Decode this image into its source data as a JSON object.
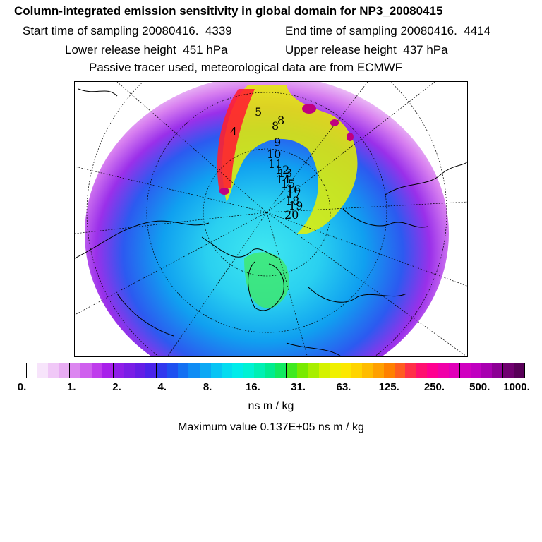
{
  "header": {
    "title": "Column-integrated emission sensitivity in global domain for NP3_20080415",
    "start_time": "Start time of sampling 20080416.  4339",
    "end_time": "End time of sampling 20080416.  4414",
    "lower_height": "Lower release height  451 hPa",
    "upper_height": "Upper release height  437 hPa",
    "tracer_note": "Passive tracer used, meteorological data are from ECMWF"
  },
  "map": {
    "projection": "polar-stereographic-north",
    "trajectory_labels": [
      "4",
      "5",
      "8",
      "8",
      "9",
      "10",
      "11",
      "12",
      "13",
      "14",
      "15",
      "16",
      "17",
      "18",
      "19",
      "20"
    ]
  },
  "colorbar": {
    "colors": [
      "#ffffff",
      "#f7e4fb",
      "#f0c8f7",
      "#e8acf3",
      "#dc86f0",
      "#cf60ee",
      "#bf3cec",
      "#a820ea",
      "#8f1ee8",
      "#7a1ee6",
      "#641ee6",
      "#4a24ea",
      "#3038ee",
      "#1e50f0",
      "#1470f2",
      "#108cf4",
      "#0ca8f4",
      "#08c4f4",
      "#04dcf0",
      "#00ecea",
      "#00f2d4",
      "#00f0b4",
      "#00ec90",
      "#10ea60",
      "#40ea20",
      "#78ea00",
      "#a8ee00",
      "#d4f200",
      "#f0f000",
      "#fce800",
      "#ffd400",
      "#ffbc00",
      "#ffa000",
      "#ff8000",
      "#ff5c20",
      "#ff3048",
      "#ff1070",
      "#ff0090",
      "#f000a8",
      "#e000b8",
      "#d000c0",
      "#c000c0",
      "#a800b0",
      "#8c0094",
      "#700070",
      "#580058"
    ],
    "ticks": [
      "0.",
      "1.",
      "2.",
      "4.",
      "8.",
      "16.",
      "31.",
      "63.",
      "125.",
      "250.",
      "500.",
      "1000."
    ],
    "unit": "ns m / kg"
  },
  "footer": {
    "max_value": "Maximum value  0.137E+05 ns m / kg"
  }
}
